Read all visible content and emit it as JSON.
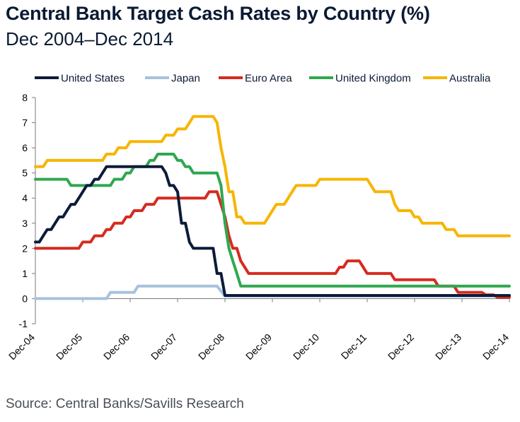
{
  "header": {
    "title": "Central Bank Target Cash Rates by Country (%)",
    "subtitle": "Dec 2004–Dec 2014"
  },
  "footer": {
    "source": "Source: Central Banks/Savills Research"
  },
  "chart_data": {
    "type": "line",
    "title": "Central Bank Target Cash Rates by Country (%)",
    "subtitle": "Dec 2004–Dec 2014",
    "xlabel": "",
    "ylabel": "",
    "xlim": [
      2004.917,
      2014.917
    ],
    "ylim": [
      -1,
      8
    ],
    "yticks": [
      -1,
      0,
      1,
      2,
      3,
      4,
      5,
      6,
      7,
      8
    ],
    "xticks": [
      {
        "label": "Dec-04",
        "x": 2004.917
      },
      {
        "label": "Dec-05",
        "x": 2005.917
      },
      {
        "label": "Dec-06",
        "x": 2006.917
      },
      {
        "label": "Dec-07",
        "x": 2007.917
      },
      {
        "label": "Dec-08",
        "x": 2008.917
      },
      {
        "label": "Dec-09",
        "x": 2009.917
      },
      {
        "label": "Dec-10",
        "x": 2010.917
      },
      {
        "label": "Dec-11",
        "x": 2011.917
      },
      {
        "label": "Dec-12",
        "x": 2012.917
      },
      {
        "label": "Dec-13",
        "x": 2013.917
      },
      {
        "label": "Dec-14",
        "x": 2014.917
      }
    ],
    "grid": false,
    "legend_position": "top",
    "series": [
      {
        "name": "United States",
        "color": "#0d1b3a",
        "points": [
          [
            2004.917,
            2.25
          ],
          [
            2005.0,
            2.25
          ],
          [
            2005.083,
            2.5
          ],
          [
            2005.167,
            2.75
          ],
          [
            2005.25,
            2.75
          ],
          [
            2005.333,
            3.0
          ],
          [
            2005.417,
            3.25
          ],
          [
            2005.5,
            3.25
          ],
          [
            2005.583,
            3.5
          ],
          [
            2005.667,
            3.75
          ],
          [
            2005.75,
            3.75
          ],
          [
            2005.833,
            4.0
          ],
          [
            2005.917,
            4.25
          ],
          [
            2006.0,
            4.5
          ],
          [
            2006.083,
            4.5
          ],
          [
            2006.167,
            4.75
          ],
          [
            2006.25,
            4.75
          ],
          [
            2006.333,
            5.0
          ],
          [
            2006.417,
            5.25
          ],
          [
            2006.5,
            5.25
          ],
          [
            2007.583,
            5.25
          ],
          [
            2007.667,
            5.0
          ],
          [
            2007.75,
            4.5
          ],
          [
            2007.833,
            4.5
          ],
          [
            2007.917,
            4.25
          ],
          [
            2008.0,
            3.0
          ],
          [
            2008.083,
            3.0
          ],
          [
            2008.167,
            2.25
          ],
          [
            2008.25,
            2.0
          ],
          [
            2008.667,
            2.0
          ],
          [
            2008.75,
            1.0
          ],
          [
            2008.833,
            1.0
          ],
          [
            2008.917,
            0.125
          ],
          [
            2014.917,
            0.125
          ]
        ]
      },
      {
        "name": "Japan",
        "color": "#a7c1de",
        "points": [
          [
            2004.917,
            0.0
          ],
          [
            2006.417,
            0.0
          ],
          [
            2006.5,
            0.25
          ],
          [
            2007.0,
            0.25
          ],
          [
            2007.083,
            0.5
          ],
          [
            2008.75,
            0.5
          ],
          [
            2008.833,
            0.3
          ],
          [
            2008.917,
            0.1
          ],
          [
            2014.917,
            0.1
          ]
        ]
      },
      {
        "name": "Euro Area",
        "color": "#d52b1e",
        "points": [
          [
            2004.917,
            2.0
          ],
          [
            2005.833,
            2.0
          ],
          [
            2005.917,
            2.25
          ],
          [
            2006.083,
            2.25
          ],
          [
            2006.167,
            2.5
          ],
          [
            2006.333,
            2.5
          ],
          [
            2006.417,
            2.75
          ],
          [
            2006.5,
            2.75
          ],
          [
            2006.583,
            3.0
          ],
          [
            2006.75,
            3.0
          ],
          [
            2006.833,
            3.25
          ],
          [
            2006.917,
            3.25
          ],
          [
            2007.0,
            3.5
          ],
          [
            2007.167,
            3.5
          ],
          [
            2007.25,
            3.75
          ],
          [
            2007.417,
            3.75
          ],
          [
            2007.5,
            4.0
          ],
          [
            2008.5,
            4.0
          ],
          [
            2008.583,
            4.25
          ],
          [
            2008.75,
            4.25
          ],
          [
            2008.833,
            3.75
          ],
          [
            2008.917,
            3.25
          ],
          [
            2009.0,
            2.5
          ],
          [
            2009.083,
            2.0
          ],
          [
            2009.167,
            2.0
          ],
          [
            2009.25,
            1.5
          ],
          [
            2009.333,
            1.25
          ],
          [
            2009.417,
            1.0
          ],
          [
            2011.25,
            1.0
          ],
          [
            2011.333,
            1.25
          ],
          [
            2011.417,
            1.25
          ],
          [
            2011.5,
            1.5
          ],
          [
            2011.75,
            1.5
          ],
          [
            2011.833,
            1.25
          ],
          [
            2011.917,
            1.0
          ],
          [
            2012.417,
            1.0
          ],
          [
            2012.5,
            0.75
          ],
          [
            2013.333,
            0.75
          ],
          [
            2013.417,
            0.5
          ],
          [
            2013.75,
            0.5
          ],
          [
            2013.833,
            0.25
          ],
          [
            2014.333,
            0.25
          ],
          [
            2014.417,
            0.15
          ],
          [
            2014.583,
            0.15
          ],
          [
            2014.667,
            0.05
          ],
          [
            2014.917,
            0.05
          ]
        ]
      },
      {
        "name": "United Kingdom",
        "color": "#2fa84f",
        "points": [
          [
            2004.917,
            4.75
          ],
          [
            2005.583,
            4.75
          ],
          [
            2005.667,
            4.5
          ],
          [
            2006.5,
            4.5
          ],
          [
            2006.583,
            4.75
          ],
          [
            2006.75,
            4.75
          ],
          [
            2006.833,
            5.0
          ],
          [
            2006.917,
            5.0
          ],
          [
            2007.0,
            5.25
          ],
          [
            2007.25,
            5.25
          ],
          [
            2007.333,
            5.5
          ],
          [
            2007.417,
            5.5
          ],
          [
            2007.5,
            5.75
          ],
          [
            2007.833,
            5.75
          ],
          [
            2007.917,
            5.5
          ],
          [
            2008.0,
            5.5
          ],
          [
            2008.083,
            5.25
          ],
          [
            2008.167,
            5.25
          ],
          [
            2008.25,
            5.0
          ],
          [
            2008.75,
            5.0
          ],
          [
            2008.833,
            4.5
          ],
          [
            2008.917,
            3.0
          ],
          [
            2009.0,
            2.0
          ],
          [
            2009.083,
            1.5
          ],
          [
            2009.167,
            1.0
          ],
          [
            2009.25,
            0.5
          ],
          [
            2014.917,
            0.5
          ]
        ]
      },
      {
        "name": "Australia",
        "color": "#f7b500",
        "points": [
          [
            2004.917,
            5.25
          ],
          [
            2005.083,
            5.25
          ],
          [
            2005.167,
            5.5
          ],
          [
            2006.333,
            5.5
          ],
          [
            2006.417,
            5.75
          ],
          [
            2006.583,
            5.75
          ],
          [
            2006.667,
            6.0
          ],
          [
            2006.833,
            6.0
          ],
          [
            2006.917,
            6.25
          ],
          [
            2007.583,
            6.25
          ],
          [
            2007.667,
            6.5
          ],
          [
            2007.833,
            6.5
          ],
          [
            2007.917,
            6.75
          ],
          [
            2008.083,
            6.75
          ],
          [
            2008.167,
            7.0
          ],
          [
            2008.25,
            7.25
          ],
          [
            2008.667,
            7.25
          ],
          [
            2008.75,
            7.0
          ],
          [
            2008.833,
            6.0
          ],
          [
            2008.917,
            5.25
          ],
          [
            2009.0,
            4.25
          ],
          [
            2009.083,
            4.25
          ],
          [
            2009.167,
            3.25
          ],
          [
            2009.25,
            3.25
          ],
          [
            2009.333,
            3.0
          ],
          [
            2009.75,
            3.0
          ],
          [
            2009.833,
            3.25
          ],
          [
            2009.917,
            3.5
          ],
          [
            2010.0,
            3.75
          ],
          [
            2010.167,
            3.75
          ],
          [
            2010.25,
            4.0
          ],
          [
            2010.333,
            4.25
          ],
          [
            2010.417,
            4.5
          ],
          [
            2010.833,
            4.5
          ],
          [
            2010.917,
            4.75
          ],
          [
            2011.917,
            4.75
          ],
          [
            2012.0,
            4.5
          ],
          [
            2012.083,
            4.25
          ],
          [
            2012.417,
            4.25
          ],
          [
            2012.5,
            3.75
          ],
          [
            2012.583,
            3.5
          ],
          [
            2012.833,
            3.5
          ],
          [
            2012.917,
            3.25
          ],
          [
            2013.0,
            3.25
          ],
          [
            2013.083,
            3.0
          ],
          [
            2013.5,
            3.0
          ],
          [
            2013.583,
            2.75
          ],
          [
            2013.75,
            2.75
          ],
          [
            2013.833,
            2.5
          ],
          [
            2014.917,
            2.5
          ]
        ]
      }
    ]
  }
}
